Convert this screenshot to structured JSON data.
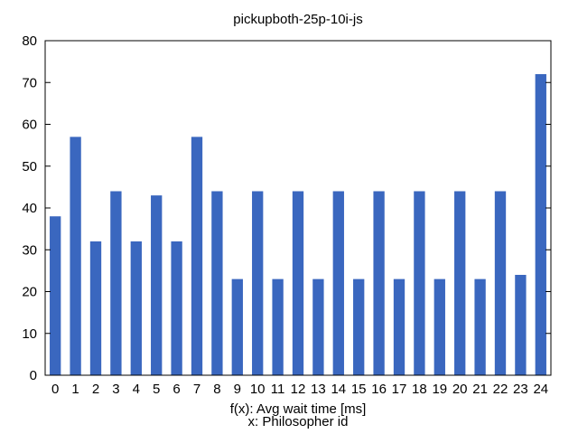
{
  "chart_data": {
    "type": "bar",
    "title": "pickupboth-25p-10i-js",
    "xlabel": "f(x): Avg wait time [ms]",
    "xlabel2": "x: Philosopher id",
    "ylabel": "",
    "categories": [
      "0",
      "1",
      "2",
      "3",
      "4",
      "5",
      "6",
      "7",
      "8",
      "9",
      "10",
      "11",
      "12",
      "13",
      "14",
      "15",
      "16",
      "17",
      "18",
      "19",
      "20",
      "21",
      "22",
      "23",
      "24"
    ],
    "values": [
      38,
      57,
      32,
      44,
      32,
      43,
      32,
      57,
      44,
      23,
      44,
      23,
      44,
      23,
      44,
      23,
      44,
      23,
      44,
      23,
      44,
      23,
      44,
      24,
      72
    ],
    "yticks": [
      "0",
      "10",
      "20",
      "30",
      "40",
      "50",
      "60",
      "70",
      "80"
    ],
    "ylim": [
      0,
      80
    ],
    "grid": false,
    "legend": "none",
    "bar_color": "#3a67bf",
    "axis_color": "#000000"
  }
}
